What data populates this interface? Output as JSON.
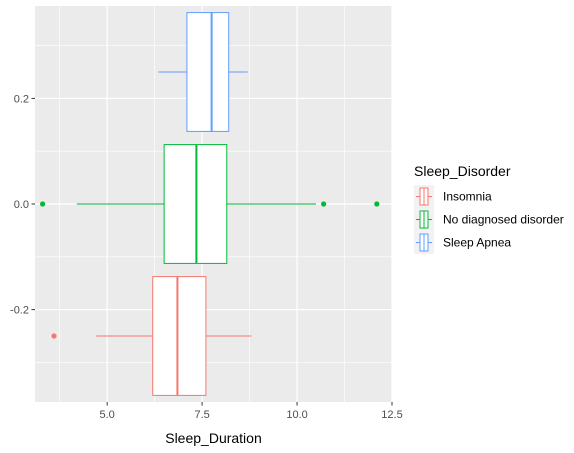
{
  "chart_data": {
    "type": "boxplot",
    "orientation": "horizontal",
    "xlabel": "Sleep_Duration",
    "ylabel": "",
    "xlim": [
      3.1,
      12.5
    ],
    "ylim": [
      -0.375,
      0.375
    ],
    "x_ticks": [
      5.0,
      7.5,
      10.0,
      12.5
    ],
    "x_tick_labels": [
      "5.0",
      "7.5",
      "10.0",
      "12.5"
    ],
    "y_ticks": [
      -0.2,
      0.0,
      0.2
    ],
    "y_tick_labels": [
      "-0.2",
      "0.0",
      "0.2"
    ],
    "grid": true,
    "legend": {
      "title": "Sleep_Disorder",
      "position": "right"
    },
    "series": [
      {
        "name": "Insomnia",
        "color": "#f8766d",
        "y_center": -0.25,
        "y_halfwidth": 0.1125,
        "whisker_low": 4.7,
        "q1": 6.2,
        "median": 6.85,
        "q3": 7.6,
        "whisker_high": 8.8,
        "outliers": [
          3.6
        ]
      },
      {
        "name": "No diagnosed disorder",
        "color": "#00ba38",
        "y_center": 0.0,
        "y_halfwidth": 0.1125,
        "whisker_low": 4.2,
        "q1": 6.5,
        "median": 7.35,
        "q3": 8.15,
        "whisker_high": 10.5,
        "outliers": [
          3.3,
          10.7,
          12.1
        ]
      },
      {
        "name": "Sleep Apnea",
        "color": "#619cff",
        "y_center": 0.25,
        "y_halfwidth": 0.1125,
        "whisker_low": 6.35,
        "q1": 7.1,
        "median": 7.75,
        "q3": 8.2,
        "whisker_high": 8.7,
        "outliers": []
      }
    ]
  },
  "style": {
    "panel_background": "#ebebeb",
    "grid_major": "#ffffff",
    "box_fill": "#ffffff",
    "tick_color": "#333333"
  }
}
